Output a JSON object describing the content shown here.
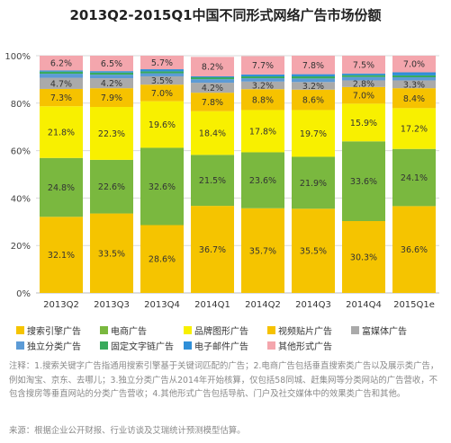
{
  "chart_data": {
    "type": "bar",
    "stacked": true,
    "title": "2013Q2-2015Q1中国不同形式网络广告市场份额",
    "categories": [
      "2013Q2",
      "2013Q3",
      "2013Q4",
      "2014Q1",
      "2014Q2",
      "2014Q3",
      "2014Q4",
      "2015Q1e"
    ],
    "ylim": [
      0,
      100
    ],
    "yticks": [
      "0%",
      "20%",
      "40%",
      "60%",
      "80%",
      "100%"
    ],
    "grid": true,
    "legend_position": "bottom",
    "series": [
      {
        "name": "搜索引擎广告",
        "color": "#f5c400",
        "values": [
          32.1,
          33.5,
          28.6,
          36.7,
          35.7,
          35.5,
          30.3,
          36.6
        ],
        "labels": [
          "32.1%",
          "33.5%",
          "28.6%",
          "36.7%",
          "35.7%",
          "35.5%",
          "30.3%",
          "36.6%"
        ]
      },
      {
        "name": "电商广告",
        "color": "#7ab83f",
        "values": [
          24.8,
          22.6,
          32.6,
          21.5,
          23.6,
          21.9,
          33.6,
          24.1
        ],
        "labels": [
          "24.8%",
          "22.6%",
          "32.6%",
          "21.5%",
          "23.6%",
          "21.9%",
          "33.6%",
          "24.1%"
        ]
      },
      {
        "name": "品牌图形广告",
        "color": "#f8f000",
        "values": [
          21.8,
          22.3,
          19.6,
          18.4,
          17.8,
          19.7,
          15.9,
          17.2
        ],
        "labels": [
          "21.8%",
          "22.3%",
          "19.6%",
          "18.4%",
          "17.8%",
          "19.7%",
          "15.9%",
          "17.2%"
        ]
      },
      {
        "name": "视频贴片广告",
        "color": "#f6c200",
        "values": [
          7.3,
          7.9,
          7.0,
          7.8,
          8.8,
          8.6,
          7.0,
          8.4
        ],
        "labels": [
          "7.3%",
          "7.9%",
          "7.0%",
          "7.8%",
          "8.8%",
          "8.6%",
          "7.0%",
          "8.4%"
        ]
      },
      {
        "name": "富媒体广告",
        "color": "#aaaaaa",
        "values": [
          4.7,
          4.2,
          3.5,
          4.2,
          3.2,
          3.2,
          2.8,
          3.3
        ],
        "labels": [
          "4.7%",
          "4.2%",
          "3.5%",
          "4.2%",
          "3.2%",
          "3.2%",
          "2.8%",
          "3.3%"
        ]
      },
      {
        "name": "独立分类广告",
        "color": "#5c9bd6",
        "values": [
          1.7,
          1.5,
          1.3,
          1.5,
          1.4,
          1.5,
          1.4,
          1.3
        ],
        "labels": [
          "",
          "",
          "",
          "",
          "",
          "",
          "",
          ""
        ]
      },
      {
        "name": "固定文字链广告",
        "color": "#3aaa5c",
        "values": [
          0.9,
          0.9,
          0.8,
          0.8,
          0.8,
          0.9,
          0.8,
          0.8
        ],
        "labels": [
          "",
          "",
          "",
          "",
          "",
          "",
          "",
          ""
        ]
      },
      {
        "name": "电子邮件广告",
        "color": "#2f8fd8",
        "values": [
          0.5,
          0.6,
          0.9,
          0.4,
          0.8,
          0.9,
          0.7,
          1.3
        ],
        "labels": [
          "",
          "",
          "",
          "",
          "",
          "",
          "",
          ""
        ]
      },
      {
        "name": "其他形式广告",
        "color": "#f4a6ad",
        "values": [
          6.2,
          6.5,
          5.7,
          8.2,
          7.7,
          7.8,
          7.5,
          7.0
        ],
        "labels": [
          "6.2%",
          "6.5%",
          "5.7%",
          "8.2%",
          "7.7%",
          "7.8%",
          "7.5%",
          "7.0%"
        ]
      }
    ],
    "legend_rows": [
      [
        "搜索引擎广告",
        "电商广告",
        "品牌图形广告",
        "视频贴片广告",
        "富媒体广告"
      ],
      [
        "独立分类广告",
        "固定文字链广告",
        "电子邮件广告",
        "其他形式广告"
      ]
    ]
  },
  "notes": "注释：1.搜索关键字广告指通用搜索引擎基于关键词匹配的广告；2.电商广告包括垂直搜索类广告以及展示类广告，例如淘宝、京东、去哪儿；3.独立分类广告从2014年开始核算，仅包括58同城、赶集网等分类网站的广告营收，不包含搜房等垂直网站的分类广告营收；4.其他形式广告包括导航、门户及社交媒体中的效果类广告和其他。",
  "source": "来源：根据企业公开财报、行业访谈及艾瑞统计预测模型估算。"
}
